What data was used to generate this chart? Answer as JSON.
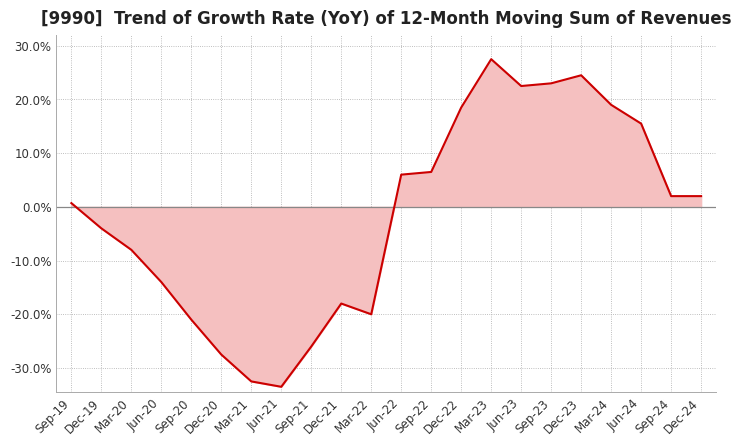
{
  "title": "[9990]  Trend of Growth Rate (YoY) of 12-Month Moving Sum of Revenues",
  "title_fontsize": 12,
  "background_color": "#ffffff",
  "line_color": "#cc0000",
  "fill_color": "#f5c0c0",
  "ylim": [
    -0.345,
    0.32
  ],
  "yticks": [
    -0.3,
    -0.2,
    -0.1,
    0.0,
    0.1,
    0.2,
    0.3
  ],
  "ytick_labels": [
    "-30.0%",
    "-20.0%",
    "-10.0%",
    "0.0%",
    "10.0%",
    "20.0%",
    "30.0%"
  ],
  "x_labels": [
    "Sep-19",
    "Dec-19",
    "Mar-20",
    "Jun-20",
    "Sep-20",
    "Dec-20",
    "Mar-21",
    "Jun-21",
    "Sep-21",
    "Dec-21",
    "Mar-22",
    "Jun-22",
    "Sep-22",
    "Dec-22",
    "Mar-23",
    "Jun-23",
    "Sep-23",
    "Dec-23",
    "Mar-24",
    "Jun-24",
    "Sep-24",
    "Dec-24"
  ],
  "values": [
    0.007,
    -0.04,
    -0.08,
    -0.14,
    -0.21,
    -0.275,
    -0.325,
    -0.335,
    -0.26,
    -0.18,
    -0.2,
    0.06,
    0.065,
    0.185,
    0.275,
    0.225,
    0.23,
    0.245,
    0.19,
    0.155,
    0.02,
    0.02
  ],
  "grid_color": "#aaaaaa",
  "grid_linestyle": ":",
  "zero_line_color": "#888888",
  "tick_color": "#333333",
  "tick_fontsize": 8.5,
  "title_color": "#222222"
}
